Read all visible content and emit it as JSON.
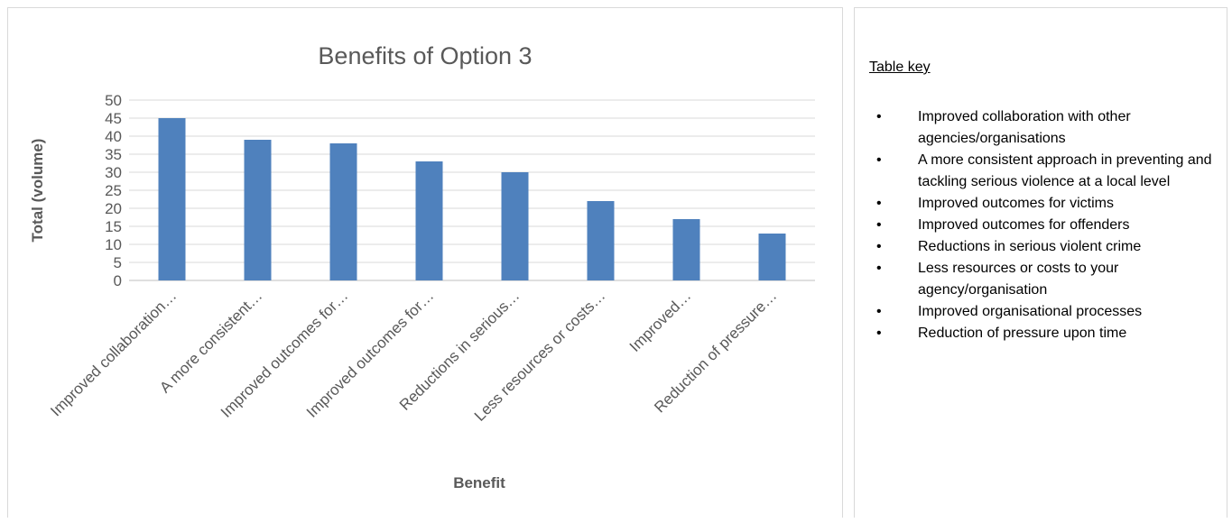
{
  "chart_data": {
    "type": "bar",
    "title": "Benefits of Option 3",
    "xlabel": "Benefit",
    "ylabel": "Total (volume)",
    "ylim": [
      0,
      50
    ],
    "yticks": [
      0,
      5,
      10,
      15,
      20,
      25,
      30,
      35,
      40,
      45,
      50
    ],
    "categories": [
      "Improved collaboration…",
      "A more consistent…",
      "Improved outcomes for…",
      "Improved outcomes for…",
      "Reductions in serious…",
      "Less resources or costs…",
      "Improved…",
      "Reduction of pressure…"
    ],
    "values": [
      45,
      39,
      38,
      33,
      30,
      22,
      17,
      13
    ],
    "bar_color": "#4f81bd",
    "grid": true,
    "legend": "none"
  },
  "key": {
    "title": "Table key",
    "items": [
      "Improved collaboration with other agencies/organisations",
      "A more consistent approach in preventing and tackling serious violence at a local level",
      "Improved outcomes for victims",
      "Improved outcomes for offenders",
      "Reductions in serious violent crime",
      "Less resources or costs to your agency/organisation",
      "Improved organisational processes",
      "Reduction of pressure upon time"
    ]
  }
}
